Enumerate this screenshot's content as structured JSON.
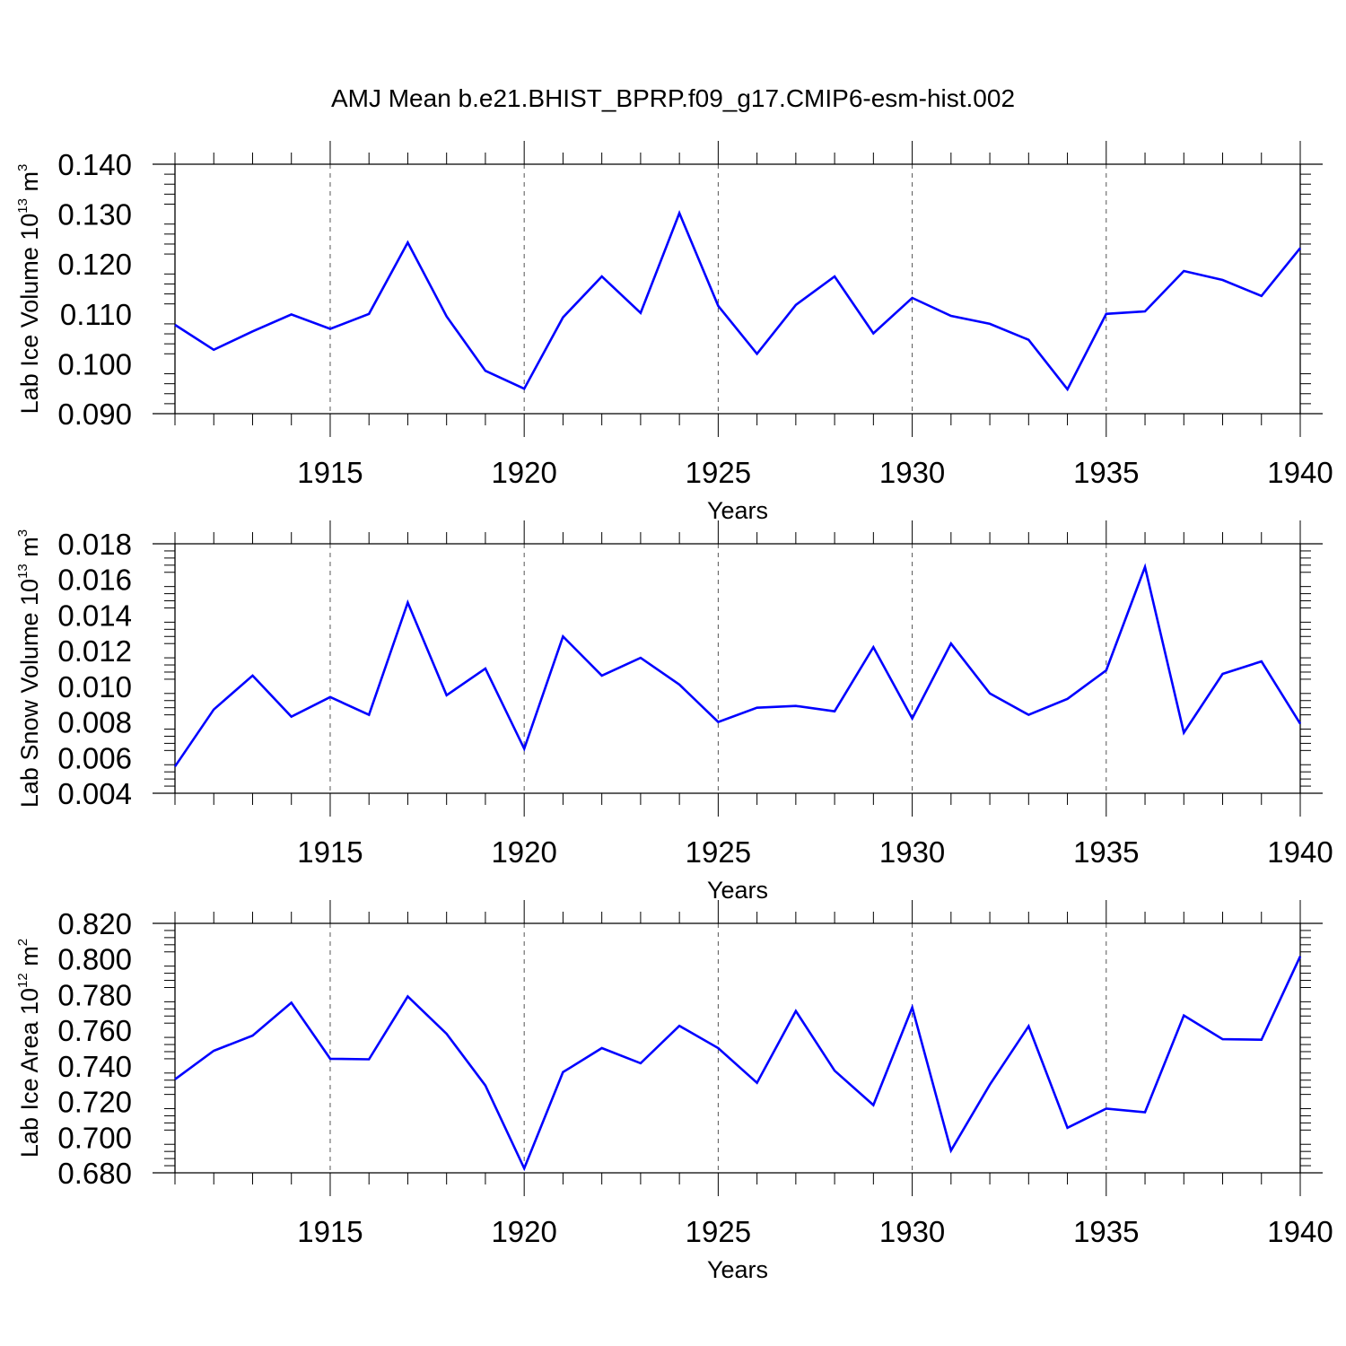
{
  "chart_data": {
    "title": "AMJ Mean b.e21.BHIST_BPRP.f09_g17.CMIP6-esm-hist.002",
    "type": "line",
    "x": [
      1911,
      1912,
      1913,
      1914,
      1915,
      1916,
      1917,
      1918,
      1919,
      1920,
      1921,
      1922,
      1923,
      1924,
      1925,
      1926,
      1927,
      1928,
      1929,
      1930,
      1931,
      1932,
      1933,
      1934,
      1935,
      1936,
      1937,
      1938,
      1939,
      1940
    ],
    "xlim": [
      1911,
      1940
    ],
    "xticks": [
      1915,
      1920,
      1925,
      1930,
      1935,
      1940
    ],
    "xlabel": "Years",
    "line_color": "#0000ff",
    "grid": "dashed vertical lines at major x ticks",
    "panels": [
      {
        "ylabel_main": "Lab Ice Volume 10",
        "ylabel_exp": "13",
        "ylabel_unit": " m",
        "ylabel_unit_exp": "3",
        "ylim": [
          0.09,
          0.14
        ],
        "yticks": [
          "0.090",
          "0.100",
          "0.110",
          "0.120",
          "0.130",
          "0.140"
        ],
        "values": [
          0.1078,
          0.1028,
          0.1065,
          0.1099,
          0.107,
          0.11,
          0.1243,
          0.1095,
          0.0986,
          0.095,
          0.1093,
          0.1175,
          0.1102,
          0.1302,
          0.1116,
          0.102,
          0.1118,
          0.1175,
          0.1061,
          0.1132,
          0.1096,
          0.108,
          0.1048,
          0.0949,
          0.11,
          0.1105,
          0.1186,
          0.1168,
          0.1136,
          0.1232
        ]
      },
      {
        "ylabel_main": "Lab Snow Volume 10",
        "ylabel_exp": "13",
        "ylabel_unit": " m",
        "ylabel_unit_exp": "3",
        "ylim": [
          0.004,
          0.018
        ],
        "yticks": [
          "0.004",
          "0.006",
          "0.008",
          "0.010",
          "0.012",
          "0.014",
          "0.016",
          "0.018"
        ],
        "values": [
          0.0055,
          0.0087,
          0.0106,
          0.0083,
          0.0094,
          0.0084,
          0.0147,
          0.0095,
          0.011,
          0.0065,
          0.0128,
          0.0106,
          0.0116,
          0.0101,
          0.008,
          0.0088,
          0.0089,
          0.0086,
          0.0122,
          0.0082,
          0.0124,
          0.0096,
          0.0084,
          0.0093,
          0.0109,
          0.0167,
          0.0074,
          0.0107,
          0.0114,
          0.0079
        ]
      },
      {
        "ylabel_main": "Lab Ice Area 10",
        "ylabel_exp": "12",
        "ylabel_unit": " m",
        "ylabel_unit_exp": "2",
        "ylim": [
          0.68,
          0.82
        ],
        "yticks": [
          "0.680",
          "0.700",
          "0.720",
          "0.740",
          "0.760",
          "0.780",
          "0.800",
          "0.820"
        ],
        "values": [
          0.7325,
          0.7485,
          0.757,
          0.7755,
          0.744,
          0.7437,
          0.779,
          0.758,
          0.729,
          0.6825,
          0.7365,
          0.75,
          0.7415,
          0.7625,
          0.75,
          0.7305,
          0.7708,
          0.7373,
          0.718,
          0.7728,
          0.6925,
          0.7295,
          0.7623,
          0.7053,
          0.716,
          0.714,
          0.7683,
          0.755,
          0.7547,
          0.8015
        ]
      }
    ]
  }
}
